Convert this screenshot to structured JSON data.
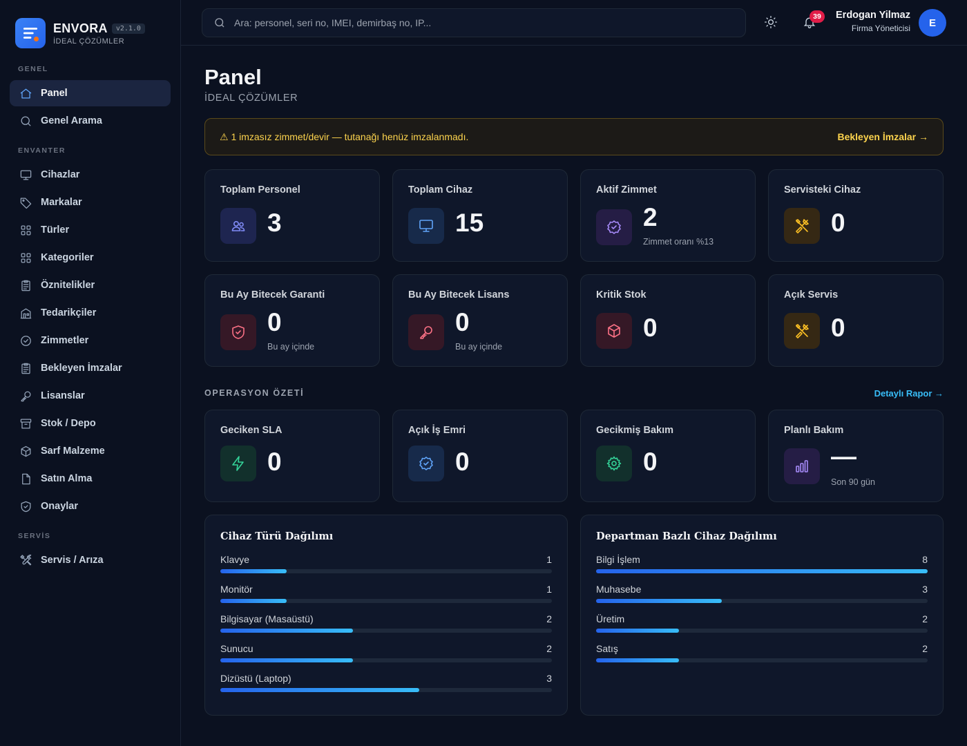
{
  "brand": {
    "name": "ENVORA",
    "version": "v2.1.0",
    "subtitle": "İDEAL ÇÖZÜMLER"
  },
  "sidebar": {
    "sections": [
      {
        "label": "GENEL"
      },
      {
        "label": "ENVANTER"
      },
      {
        "label": "SERVİS"
      }
    ],
    "items": [
      {
        "label": "Panel",
        "icon": "home-icon",
        "active": true
      },
      {
        "label": "Genel Arama",
        "icon": "search-icon"
      },
      {
        "label": "Cihazlar",
        "icon": "monitor-icon"
      },
      {
        "label": "Markalar",
        "icon": "tag-icon"
      },
      {
        "label": "Türler",
        "icon": "grid-icon"
      },
      {
        "label": "Kategoriler",
        "icon": "grid-icon"
      },
      {
        "label": "Öznitelikler",
        "icon": "clipboard-icon"
      },
      {
        "label": "Tedarikçiler",
        "icon": "building-icon"
      },
      {
        "label": "Zimmetler",
        "icon": "check-circle-icon"
      },
      {
        "label": "Bekleyen İmzalar",
        "icon": "clipboard-icon"
      },
      {
        "label": "Lisanslar",
        "icon": "key-icon"
      },
      {
        "label": "Stok / Depo",
        "icon": "archive-icon"
      },
      {
        "label": "Sarf Malzeme",
        "icon": "box-icon"
      },
      {
        "label": "Satın Alma",
        "icon": "file-icon"
      },
      {
        "label": "Onaylar",
        "icon": "shield-icon"
      },
      {
        "label": "Servis / Arıza",
        "icon": "tools-icon"
      }
    ]
  },
  "topbar": {
    "search_placeholder": "Ara: personel, seri no, IMEI, demirbaş no, IP...",
    "notifications": "39",
    "user_name": "Erdogan Yilmaz",
    "user_role": "Firma Yöneticisi",
    "avatar_initial": "E"
  },
  "page": {
    "title": "Panel",
    "subtitle": "İDEAL ÇÖZÜMLER"
  },
  "alert": {
    "text": "⚠ 1 imzasız zimmet/devir — tutanağı henüz imzalanmadı.",
    "link": "Bekleyen İmzalar →"
  },
  "stats": [
    {
      "title": "Toplam Personel",
      "value": "3",
      "icon": "users-icon",
      "color": "#818cf8"
    },
    {
      "title": "Toplam Cihaz",
      "value": "15",
      "icon": "monitor-icon",
      "color": "#60a5fa"
    },
    {
      "title": "Aktif Zimmet",
      "value": "2",
      "note": "Zimmet oranı %13",
      "icon": "badge-check-icon",
      "color": "#a78bfa"
    },
    {
      "title": "Servisteki Cihaz",
      "value": "0",
      "icon": "tools-icon",
      "color": "#fbbf24"
    },
    {
      "title": "Bu Ay Bitecek Garanti",
      "value": "0",
      "note": "Bu ay içinde",
      "icon": "shield-icon",
      "color": "#fb7185"
    },
    {
      "title": "Bu Ay Bitecek Lisans",
      "value": "0",
      "note": "Bu ay içinde",
      "icon": "key-icon",
      "color": "#fb7185"
    },
    {
      "title": "Kritik Stok",
      "value": "0",
      "icon": "box-icon",
      "color": "#fb7185"
    },
    {
      "title": "Açık Servis",
      "value": "0",
      "icon": "tools-icon",
      "color": "#fbbf24"
    }
  ],
  "operations": {
    "label": "OPERASYON ÖZETİ",
    "link": "Detaylı Rapor →",
    "cards": [
      {
        "title": "Geciken SLA",
        "value": "0",
        "icon": "bolt-icon",
        "color": "#34d399"
      },
      {
        "title": "Açık İş Emri",
        "value": "0",
        "icon": "badge-check-icon",
        "color": "#60a5fa"
      },
      {
        "title": "Gecikmiş Bakım",
        "value": "0",
        "icon": "gear-icon",
        "color": "#34d399"
      },
      {
        "title": "Planlı Bakım",
        "value": "—",
        "note": "Son 90 gün",
        "icon": "bar-chart-icon",
        "color": "#a78bfa"
      }
    ]
  },
  "device_types": {
    "title": "Cihaz Türü Dağılımı",
    "rows": [
      {
        "label": "Klavye",
        "value": "1",
        "fraction": 0.2
      },
      {
        "label": "Monitör",
        "value": "1",
        "fraction": 0.2
      },
      {
        "label": "Bilgisayar (Masaüstü)",
        "value": "2",
        "fraction": 0.4
      },
      {
        "label": "Sunucu",
        "value": "2",
        "fraction": 0.4
      },
      {
        "label": "Dizüstü (Laptop)",
        "value": "3",
        "fraction": 0.6
      }
    ]
  },
  "departments": {
    "title": "Departman Bazlı Cihaz Dağılımı",
    "rows": [
      {
        "label": "Bilgi İşlem",
        "value": "8",
        "fraction": 1.0
      },
      {
        "label": "Muhasebe",
        "value": "3",
        "fraction": 0.38
      },
      {
        "label": "Üretim",
        "value": "2",
        "fraction": 0.25
      },
      {
        "label": "Satış",
        "value": "2",
        "fraction": 0.25
      }
    ]
  }
}
